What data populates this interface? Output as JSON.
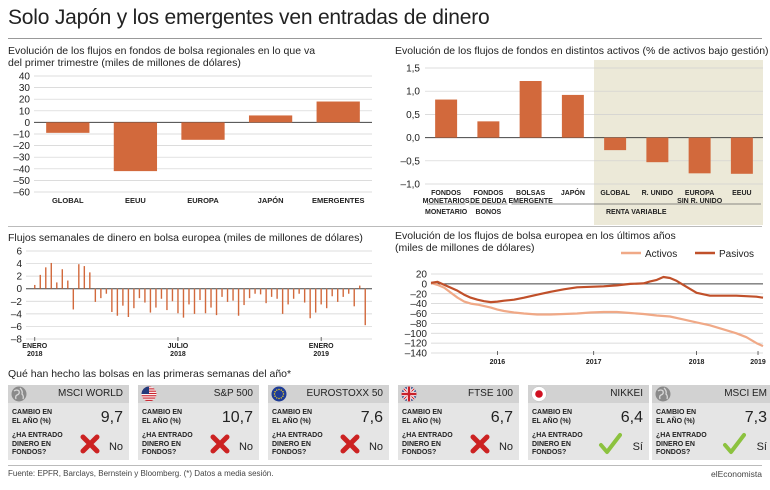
{
  "title": "Solo Japón y los emergentes ven entradas de dinero",
  "footer": "Fuente: EPFR, Barclays, Bernstein y Bloomberg. (*) Datos a media sesión.",
  "brand": "elEconomista",
  "colors": {
    "bar": "#d2693c",
    "grid": "#d0d0d0",
    "axis": "#444444",
    "highlight": "#ece9d8",
    "card": "#e5e5e5",
    "card_head": "#d2d2d2",
    "activos": "#f0a987",
    "pasivos": "#c0502a",
    "check": "#8cc23f",
    "cross": "#cc2222"
  },
  "chart_data": [
    {
      "type": "bar",
      "title": "Evolución de los flujos en fondos de bolsa regionales en lo que va del primer trimestre (miles de millones de dólares)",
      "title_lines": [
        "Evolución de los flujos en fondos de bolsa regionales en lo que va",
        "del primer trimestre (miles de millones de dólares)"
      ],
      "categories": [
        "GLOBAL",
        "EEUU",
        "EUROPA",
        "JAPÓN",
        "EMERGENTES"
      ],
      "values": [
        -9,
        -42,
        -15,
        6,
        18
      ],
      "ylim": [
        -60,
        40
      ],
      "yticks": [
        "40",
        "30",
        "20",
        "10",
        "0",
        "–10",
        "–20",
        "–30",
        "–40",
        "–50",
        "–60"
      ],
      "grid": true
    },
    {
      "type": "bar",
      "title": "Evolución de los flujos de fondos en distintos activos (% de activos bajo gestión)",
      "categories": [
        [
          "FONDOS",
          "MONETARIOS"
        ],
        [
          "FONDOS",
          "DE DEUDA"
        ],
        [
          "BOLSAS",
          "EMERGENTE"
        ],
        [
          "JAPÓN"
        ],
        [
          "GLOBAL"
        ],
        [
          "R. UNIDO"
        ],
        [
          "EUROPA",
          "SIN R. UNIDO"
        ],
        [
          "EEUU"
        ]
      ],
      "values": [
        0.82,
        0.35,
        1.22,
        0.92,
        -0.27,
        -0.53,
        -0.77,
        -0.78
      ],
      "groups": [
        "MONETARIO",
        "BONOS",
        "RENTA VARIABLE"
      ],
      "ylim": [
        -1.0,
        1.5
      ],
      "yticks": [
        "1,5",
        "1,0",
        "0,5",
        "0,0",
        "–0,5",
        "–1,0"
      ],
      "grid": true
    },
    {
      "type": "bar",
      "title": "Flujos semanales de dinero en bolsa europea (miles de millones de dólares)",
      "values": [
        0.6,
        2.2,
        3.4,
        4.1,
        1.0,
        3.1,
        1.3,
        -3.3,
        3.9,
        3.6,
        2.6,
        -2.1,
        -1.5,
        -0.8,
        -3.7,
        -4.3,
        -2.7,
        -4.5,
        -3.1,
        -1.5,
        -2.2,
        -3.8,
        -3.0,
        -1.6,
        -3.4,
        -2.0,
        -3.9,
        -4.6,
        -2.5,
        -4.0,
        -1.8,
        -3.9,
        -3.0,
        -4.2,
        -1.3,
        -2.1,
        -1.9,
        -4.3,
        -2.6,
        -1.5,
        -0.8,
        -0.9,
        -2.3,
        -1.3,
        -1.6,
        -4.0,
        -2.5,
        -1.6,
        -0.8,
        -2.2,
        -4.7,
        -3.8,
        -2.5,
        -3.1,
        -1.2,
        -2.1,
        -1.3,
        -0.8,
        -2.8,
        0.5,
        -5.8
      ],
      "ylim": [
        -8,
        6
      ],
      "yticks": [
        "6",
        "4",
        "2",
        "0",
        "–2",
        "–4",
        "–6",
        "–8"
      ],
      "xlabels": [
        [
          "ENERO",
          "2018"
        ],
        [
          "JULIO",
          "2018"
        ],
        [
          "ENERO",
          "2019"
        ]
      ],
      "grid": true
    },
    {
      "type": "line",
      "title": "Evolución de los flujos de bolsa europea en los últimos años (miles de millones de dólares)",
      "title_lines": [
        "Evolución de los flujos de bolsa europea en los últimos años",
        "(miles de millones de dólares)"
      ],
      "xlabels": [
        "2016",
        "2017",
        "2018",
        "2019"
      ],
      "ylim": [
        -140,
        20
      ],
      "yticks": [
        "20",
        "0",
        "–20",
        "–40",
        "–60",
        "–80",
        "–100",
        "–120",
        "–140"
      ],
      "series": [
        {
          "name": "Activos",
          "x": [
            0,
            0.02,
            0.04,
            0.06,
            0.08,
            0.1,
            0.12,
            0.14,
            0.16,
            0.18,
            0.2,
            0.22,
            0.25,
            0.28,
            0.32,
            0.36,
            0.4,
            0.44,
            0.48,
            0.52,
            0.56,
            0.6,
            0.64,
            0.68,
            0.72,
            0.76,
            0.8,
            0.84,
            0.88,
            0.92,
            0.95,
            0.98,
            1.0
          ],
          "y": [
            2,
            -2,
            -8,
            -18,
            -28,
            -36,
            -40,
            -42,
            -45,
            -48,
            -52,
            -55,
            -58,
            -60,
            -62,
            -62,
            -61,
            -60,
            -58,
            -57,
            -57,
            -59,
            -61,
            -64,
            -66,
            -72,
            -78,
            -84,
            -92,
            -100,
            -108,
            -120,
            -126
          ]
        },
        {
          "name": "Pasivos",
          "x": [
            0,
            0.02,
            0.04,
            0.06,
            0.08,
            0.1,
            0.12,
            0.14,
            0.16,
            0.18,
            0.2,
            0.22,
            0.25,
            0.28,
            0.32,
            0.36,
            0.4,
            0.44,
            0.48,
            0.52,
            0.56,
            0.6,
            0.64,
            0.66,
            0.68,
            0.7,
            0.72,
            0.74,
            0.76,
            0.8,
            0.84,
            0.88,
            0.92,
            0.95,
            0.98,
            1.0
          ],
          "y": [
            2,
            4,
            -2,
            -8,
            -14,
            -22,
            -28,
            -32,
            -35,
            -37,
            -36,
            -34,
            -32,
            -28,
            -22,
            -16,
            -11,
            -7,
            -6,
            -5,
            -3,
            0,
            1,
            5,
            8,
            14,
            12,
            6,
            -2,
            -18,
            -24,
            -24,
            -24,
            -25,
            -26,
            -28
          ]
        }
      ],
      "grid": true
    }
  ],
  "markets": {
    "heading": "Qué han hecho las bolsas en las primeras semanas del año*",
    "change_label": [
      "CAMBIO EN",
      "EL AÑO (%)"
    ],
    "inflow_label": [
      "¿HA ENTRADO",
      "DINERO EN",
      "FONDOS?"
    ],
    "items": [
      {
        "name": "MSCI WORLD",
        "icon": "globe-icon",
        "change": "9,7",
        "inflow": "No",
        "mark": "cross"
      },
      {
        "name": "S&P 500",
        "icon": "us-flag-icon",
        "change": "10,7",
        "inflow": "No",
        "mark": "cross"
      },
      {
        "name": "EUROSTOXX 50",
        "icon": "eu-flag-icon",
        "change": "7,6",
        "inflow": "No",
        "mark": "cross"
      },
      {
        "name": "FTSE 100",
        "icon": "uk-flag-icon",
        "change": "6,7",
        "inflow": "No",
        "mark": "cross"
      },
      {
        "name": "NIKKEI",
        "icon": "japan-flag-icon",
        "change": "6,4",
        "inflow": "Sí",
        "mark": "check"
      },
      {
        "name": "MSCI EM",
        "icon": "globe-icon",
        "change": "7,3",
        "inflow": "Sí",
        "mark": "check"
      }
    ]
  }
}
